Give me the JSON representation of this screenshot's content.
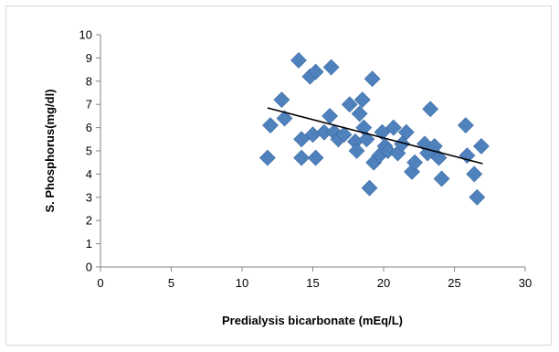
{
  "chart_data": {
    "type": "scatter",
    "title": "",
    "xlabel": "Predialysis bicarbonate (mEq/L)",
    "ylabel": "S. Phosphorus(mg/dl)",
    "xlim": [
      0,
      30
    ],
    "ylim": [
      0,
      10
    ],
    "x_ticks": [
      "0",
      "5",
      "10",
      "15",
      "20",
      "25",
      "30"
    ],
    "y_ticks": [
      "0",
      "1",
      "2",
      "3",
      "4",
      "5",
      "6",
      "7",
      "8",
      "9",
      "10"
    ],
    "grid": false,
    "legend": "none",
    "marker": "diamond",
    "marker_color": "#4f81bd",
    "trendline_color": "#000000",
    "series": [
      {
        "points": [
          [
            11.8,
            4.7
          ],
          [
            12.0,
            6.1
          ],
          [
            12.8,
            7.2
          ],
          [
            13.0,
            6.4
          ],
          [
            14.0,
            8.9
          ],
          [
            14.2,
            4.7
          ],
          [
            14.2,
            5.5
          ],
          [
            14.8,
            8.2
          ],
          [
            15.0,
            5.7
          ],
          [
            15.2,
            8.4
          ],
          [
            15.2,
            4.7
          ],
          [
            15.8,
            5.8
          ],
          [
            16.2,
            6.5
          ],
          [
            16.3,
            8.6
          ],
          [
            16.5,
            5.8
          ],
          [
            16.8,
            5.5
          ],
          [
            17.2,
            5.7
          ],
          [
            17.6,
            7.0
          ],
          [
            18.0,
            5.4
          ],
          [
            18.1,
            5.0
          ],
          [
            18.3,
            6.6
          ],
          [
            18.5,
            7.2
          ],
          [
            18.6,
            6.0
          ],
          [
            18.8,
            5.5
          ],
          [
            19.0,
            3.4
          ],
          [
            19.2,
            8.1
          ],
          [
            19.3,
            4.5
          ],
          [
            19.7,
            4.8
          ],
          [
            19.9,
            5.8
          ],
          [
            20.1,
            5.2
          ],
          [
            20.3,
            5.0
          ],
          [
            20.7,
            6.0
          ],
          [
            21.0,
            4.9
          ],
          [
            21.3,
            5.3
          ],
          [
            21.6,
            5.8
          ],
          [
            22.0,
            4.1
          ],
          [
            22.2,
            4.5
          ],
          [
            22.9,
            5.3
          ],
          [
            23.1,
            4.9
          ],
          [
            23.3,
            6.8
          ],
          [
            23.6,
            5.2
          ],
          [
            23.9,
            4.7
          ],
          [
            24.1,
            3.8
          ],
          [
            25.8,
            6.1
          ],
          [
            25.9,
            4.8
          ],
          [
            26.4,
            4.0
          ],
          [
            26.6,
            3.0
          ],
          [
            26.9,
            5.2
          ]
        ]
      }
    ],
    "trendline": [
      [
        11.8,
        6.85
      ],
      [
        27.0,
        4.45
      ]
    ]
  }
}
